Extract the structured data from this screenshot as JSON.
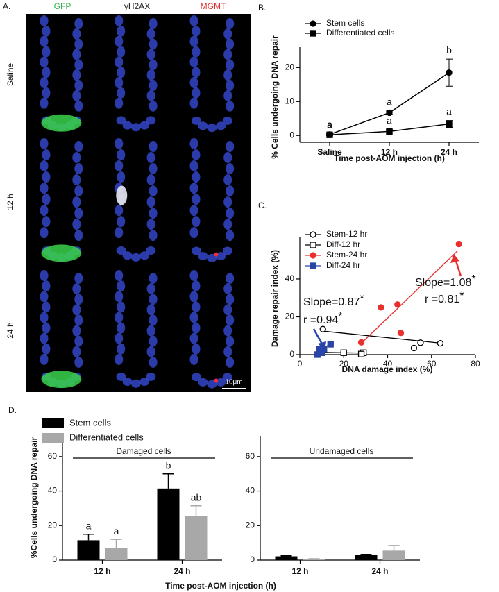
{
  "panel_a": {
    "label": "A.",
    "columns": [
      {
        "text": "GFP",
        "color": "#2fb34a"
      },
      {
        "text": "γH2AX",
        "color": "#222222"
      },
      {
        "text": "MGMT",
        "color": "#e0302e"
      }
    ],
    "rows": [
      "Saline",
      "12 h",
      "24 h"
    ],
    "scale_bar": "10μm"
  },
  "chart_data": [
    {
      "type": "line",
      "panel": "B.",
      "ylabel": "% Cells undergoing DNA repair",
      "xlabel": "Time post-AOM injection (h)",
      "categories": [
        "Saline",
        "12 h",
        "24 h"
      ],
      "ylim": [
        -2,
        26
      ],
      "yticks": [
        0,
        10,
        20
      ],
      "series": [
        {
          "name": "Stem cells",
          "marker": "circle",
          "color": "#000000",
          "values": [
            0.3,
            6.7,
            18.5
          ],
          "errors": [
            0.3,
            0.5,
            4
          ],
          "letters": [
            "a",
            "a",
            "b"
          ]
        },
        {
          "name": "Differentiated cells",
          "marker": "square",
          "color": "#000000",
          "values": [
            0.2,
            1.2,
            3.4
          ],
          "errors": [
            0.2,
            0.5,
            1
          ],
          "letters": [
            "a",
            "a",
            "a"
          ]
        }
      ]
    },
    {
      "type": "scatter",
      "panel": "C.",
      "ylabel": "Damage repair index (%)",
      "xlabel": "DNA damage index (%)",
      "xlim": [
        0,
        80
      ],
      "xticks": [
        0,
        20,
        40,
        60,
        80
      ],
      "ylim": [
        0,
        62
      ],
      "yticks": [
        0,
        20,
        40
      ],
      "series": [
        {
          "name": "Stem-12 hr",
          "marker": "circle-open",
          "color": "#000000",
          "x": [
            10.5,
            55,
            52,
            64
          ],
          "values": [
            13.5,
            6.3,
            3.5,
            6
          ],
          "fit_x": [
            10,
            65
          ],
          "fit_y": [
            12.5,
            6
          ]
        },
        {
          "name": "Diff-12 hr",
          "marker": "square-open",
          "color": "#000000",
          "x": [
            10,
            20,
            29,
            28
          ],
          "values": [
            1,
            1,
            1,
            0.3
          ],
          "fit_x": [
            10,
            29
          ],
          "fit_y": [
            1.2,
            0.8
          ]
        },
        {
          "name": "Stem-24 hr",
          "marker": "circle",
          "color": "#e8302c",
          "x": [
            72.5,
            37,
            44.5,
            46,
            28
          ],
          "values": [
            58.5,
            25,
            26.5,
            11.5,
            6.5
          ],
          "fit_x": [
            28,
            72
          ],
          "fit_y": [
            6,
            55
          ]
        },
        {
          "name": "Diff-24 hr",
          "marker": "square",
          "color": "#2a44a8",
          "x": [
            8,
            9,
            11,
            14,
            9,
            10
          ],
          "values": [
            0,
            3,
            3,
            5.5,
            1,
            1
          ],
          "fit_x": [
            7,
            14
          ],
          "fit_y": [
            0,
            6
          ]
        }
      ],
      "annotations": [
        {
          "text": "Slope=0.87",
          "mark": "*"
        },
        {
          "text": "r =0.94",
          "mark": "*"
        },
        {
          "text": "Slope=1.08",
          "mark": "*"
        },
        {
          "text": "r =0.81",
          "mark": "*"
        }
      ]
    },
    {
      "type": "bar",
      "panel": "D.",
      "ylabel": "%Cells undergoing DNA repair",
      "xlabel": "Time post-AOM injection (h)",
      "group_label": "Damaged cells",
      "categories": [
        "12 h",
        "24 h"
      ],
      "ylim": [
        0,
        72
      ],
      "yticks": [
        0,
        20,
        40,
        60
      ],
      "series": [
        {
          "name": "Stem cells",
          "color": "#000000",
          "values": [
            11.5,
            41.5
          ],
          "errors": [
            3.5,
            8.5
          ],
          "letters": [
            "a",
            "b"
          ]
        },
        {
          "name": "Differentiated cells",
          "color": "#a8a8a8",
          "values": [
            7,
            25.5
          ],
          "errors": [
            5,
            6
          ],
          "letters": [
            "a",
            "ab"
          ]
        }
      ]
    },
    {
      "type": "bar",
      "group_label": "Undamaged cells",
      "categories": [
        "12 h",
        "24 h"
      ],
      "ylim": [
        0,
        72
      ],
      "yticks": [
        0,
        20,
        40,
        60
      ],
      "series": [
        {
          "color": "#000000",
          "values": [
            2.2,
            3
          ],
          "errors": [
            0.3,
            0.3
          ]
        },
        {
          "color": "#a8a8a8",
          "values": [
            0.5,
            5.5
          ],
          "errors": [
            0.3,
            3
          ]
        }
      ]
    }
  ]
}
